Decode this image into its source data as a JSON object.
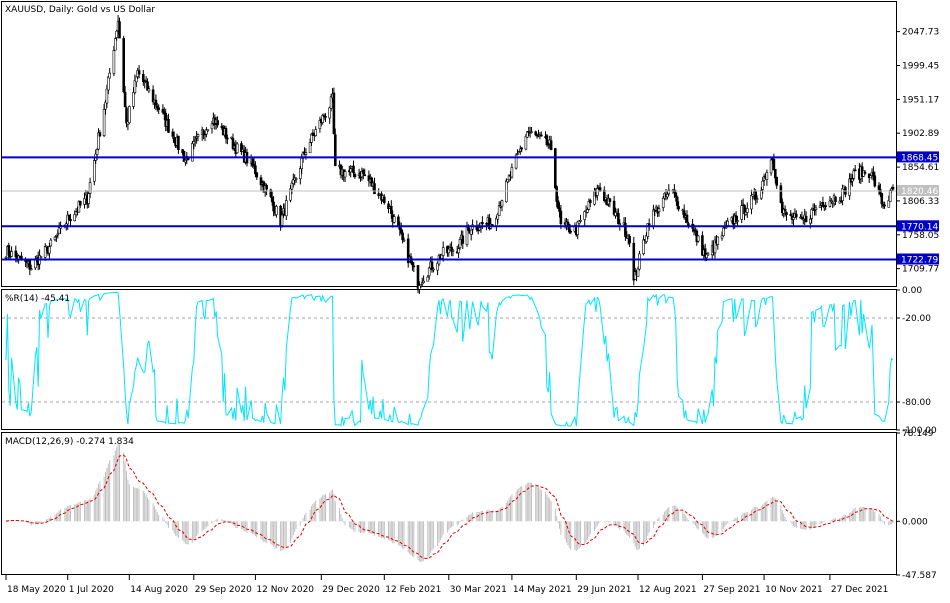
{
  "chart_data": [
    {
      "type": "candlestick",
      "panel": "price",
      "title": "XAUUSD, Daily:  Gold vs US Dollar",
      "ylim": [
        1685,
        2090
      ],
      "y_ticks": [
        "2047.73",
        "1999.45",
        "1951.17",
        "1902.89",
        "1854.61",
        "1806.33",
        "1758.05",
        "1709.77"
      ],
      "current_price": "1820.46",
      "horizontal_lines": [
        {
          "label": "1868.45",
          "value": 1868.45,
          "color": "#0000cc"
        },
        {
          "label": "1770.14",
          "value": 1770.14,
          "color": "#0000cc"
        },
        {
          "label": "1722.79",
          "value": 1722.79,
          "color": "#0000cc"
        }
      ],
      "close_anchors": [
        {
          "date": "2020-05-18",
          "close": 1735
        },
        {
          "date": "2020-06-05",
          "close": 1712
        },
        {
          "date": "2020-06-20",
          "close": 1745
        },
        {
          "date": "2020-07-01",
          "close": 1780
        },
        {
          "date": "2020-07-15",
          "close": 1810
        },
        {
          "date": "2020-07-28",
          "close": 1950
        },
        {
          "date": "2020-08-06",
          "close": 2065
        },
        {
          "date": "2020-08-12",
          "close": 1915
        },
        {
          "date": "2020-08-20",
          "close": 1990
        },
        {
          "date": "2020-09-05",
          "close": 1935
        },
        {
          "date": "2020-09-23",
          "close": 1865
        },
        {
          "date": "2020-10-12",
          "close": 1925
        },
        {
          "date": "2020-10-30",
          "close": 1880
        },
        {
          "date": "2020-11-09",
          "close": 1860
        },
        {
          "date": "2020-11-24",
          "close": 1805
        },
        {
          "date": "2020-11-30",
          "close": 1777
        },
        {
          "date": "2020-12-18",
          "close": 1880
        },
        {
          "date": "2021-01-06",
          "close": 1950
        },
        {
          "date": "2021-01-08",
          "close": 1850
        },
        {
          "date": "2021-01-28",
          "close": 1845
        },
        {
          "date": "2021-02-15",
          "close": 1800
        },
        {
          "date": "2021-03-08",
          "close": 1690
        },
        {
          "date": "2021-03-25",
          "close": 1730
        },
        {
          "date": "2021-04-05",
          "close": 1740
        },
        {
          "date": "2021-04-15",
          "close": 1770
        },
        {
          "date": "2021-04-30",
          "close": 1775
        },
        {
          "date": "2021-05-25",
          "close": 1905
        },
        {
          "date": "2021-06-10",
          "close": 1885
        },
        {
          "date": "2021-06-18",
          "close": 1770
        },
        {
          "date": "2021-06-29",
          "close": 1765
        },
        {
          "date": "2021-07-15",
          "close": 1825
        },
        {
          "date": "2021-08-06",
          "close": 1755
        },
        {
          "date": "2021-08-09",
          "close": 1690
        },
        {
          "date": "2021-08-20",
          "close": 1780
        },
        {
          "date": "2021-09-05",
          "close": 1822
        },
        {
          "date": "2021-09-20",
          "close": 1765
        },
        {
          "date": "2021-09-30",
          "close": 1725
        },
        {
          "date": "2021-10-15",
          "close": 1770
        },
        {
          "date": "2021-11-05",
          "close": 1815
        },
        {
          "date": "2021-11-16",
          "close": 1870
        },
        {
          "date": "2021-11-23",
          "close": 1790
        },
        {
          "date": "2021-12-06",
          "close": 1775
        },
        {
          "date": "2021-12-22",
          "close": 1805
        },
        {
          "date": "2022-01-04",
          "close": 1815
        },
        {
          "date": "2022-01-14",
          "close": 1845
        },
        {
          "date": "2022-01-25",
          "close": 1848
        },
        {
          "date": "2022-02-03",
          "close": 1800
        },
        {
          "date": "2022-02-10",
          "close": 1820
        }
      ]
    },
    {
      "type": "line",
      "panel": "williams_r",
      "title": "%R(14) -45.41",
      "ylim": [
        -100,
        0
      ],
      "y_ticks": [
        "0.00",
        "-20.00",
        "-80.00",
        "-100.00"
      ],
      "levels": [
        -20,
        -80
      ],
      "color": "#00e5ff"
    },
    {
      "type": "macd",
      "panel": "macd",
      "title": "MACD(12,26,9) -0.274 1.834",
      "ylim": [
        -47.587,
        78.149
      ],
      "y_ticks": [
        "78.149",
        "0.000",
        "-47.587"
      ],
      "histogram_color": "#c0c0c0",
      "signal_color": "#e00000"
    }
  ],
  "x_axis": {
    "start_date": "2020-05-18",
    "end_date": "2022-02-10",
    "tick_labels": [
      {
        "label": "18 May 2020",
        "date": "2020-05-18"
      },
      {
        "label": "1 Jul 2020",
        "date": "2020-07-01"
      },
      {
        "label": "14 Aug 2020",
        "date": "2020-08-14"
      },
      {
        "label": "29 Sep 2020",
        "date": "2020-09-29"
      },
      {
        "label": "12 Nov 2020",
        "date": "2020-11-12"
      },
      {
        "label": "29 Dec 2020",
        "date": "2020-12-29"
      },
      {
        "label": "12 Feb 2021",
        "date": "2021-02-12"
      },
      {
        "label": "30 Mar 2021",
        "date": "2021-03-30"
      },
      {
        "label": "14 May 2021",
        "date": "2021-05-14"
      },
      {
        "label": "29 Jun 2021",
        "date": "2021-06-29"
      },
      {
        "label": "12 Aug 2021",
        "date": "2021-08-12"
      },
      {
        "label": "27 Sep 2021",
        "date": "2021-09-27"
      },
      {
        "label": "10 Nov 2021",
        "date": "2021-11-10"
      },
      {
        "label": "27 Dec 2021",
        "date": "2021-12-27"
      }
    ]
  }
}
